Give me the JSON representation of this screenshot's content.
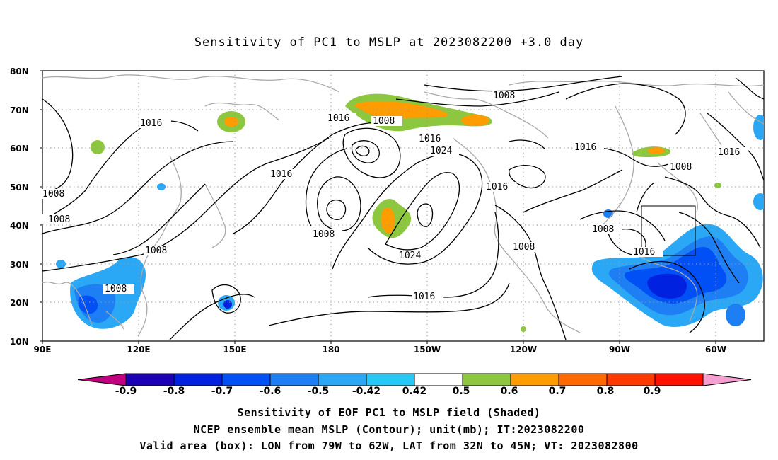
{
  "title": "Sensitivity of PC1 to MSLP at 2023082200 +3.0 day",
  "lat_labels": [
    "80N",
    "70N",
    "60N",
    "50N",
    "40N",
    "30N",
    "20N",
    "10N"
  ],
  "lon_labels": [
    "90E",
    "120E",
    "150E",
    "180",
    "150W",
    "120W",
    "90W",
    "60W"
  ],
  "contour_labels": [
    {
      "text": "1008"
    },
    {
      "text": "1016"
    },
    {
      "text": "1008"
    },
    {
      "text": "1016"
    },
    {
      "text": "1016"
    },
    {
      "text": "1024"
    },
    {
      "text": "1016"
    },
    {
      "text": "1016"
    },
    {
      "text": "1016"
    },
    {
      "text": "1016"
    },
    {
      "text": "1008"
    },
    {
      "text": "1008"
    },
    {
      "text": "1008"
    },
    {
      "text": "1008"
    },
    {
      "text": "1008"
    },
    {
      "text": "1008"
    },
    {
      "text": "1024"
    },
    {
      "text": "1008"
    },
    {
      "text": "1016"
    },
    {
      "text": "1008"
    },
    {
      "text": "1016"
    },
    {
      "text": "1016"
    }
  ],
  "colorbar": {
    "labels": [
      "-0.9",
      "-0.8",
      "-0.7",
      "-0.6",
      "-0.5",
      "-0.42",
      "0.42",
      "0.5",
      "0.6",
      "0.7",
      "0.8",
      "0.9"
    ],
    "colors": [
      "#c0007f",
      "#1c00b4",
      "#0022e0",
      "#0050f5",
      "#1e7ff5",
      "#2aa8f5",
      "#27c8f5",
      "#ffffff",
      "#8dc63f",
      "#ff9c00",
      "#ff6a00",
      "#ff3a00",
      "#ff1000",
      "#f5a0d0"
    ]
  },
  "captions": [
    "Sensitivity of EOF PC1 to MSLP field (Shaded)",
    "NCEP ensemble mean MSLP (Contour); unit(mb); IT:2023082200",
    "Valid area (box): LON from 79W to 62W, LAT from 32N to 45N; VT: 2023082800"
  ]
}
